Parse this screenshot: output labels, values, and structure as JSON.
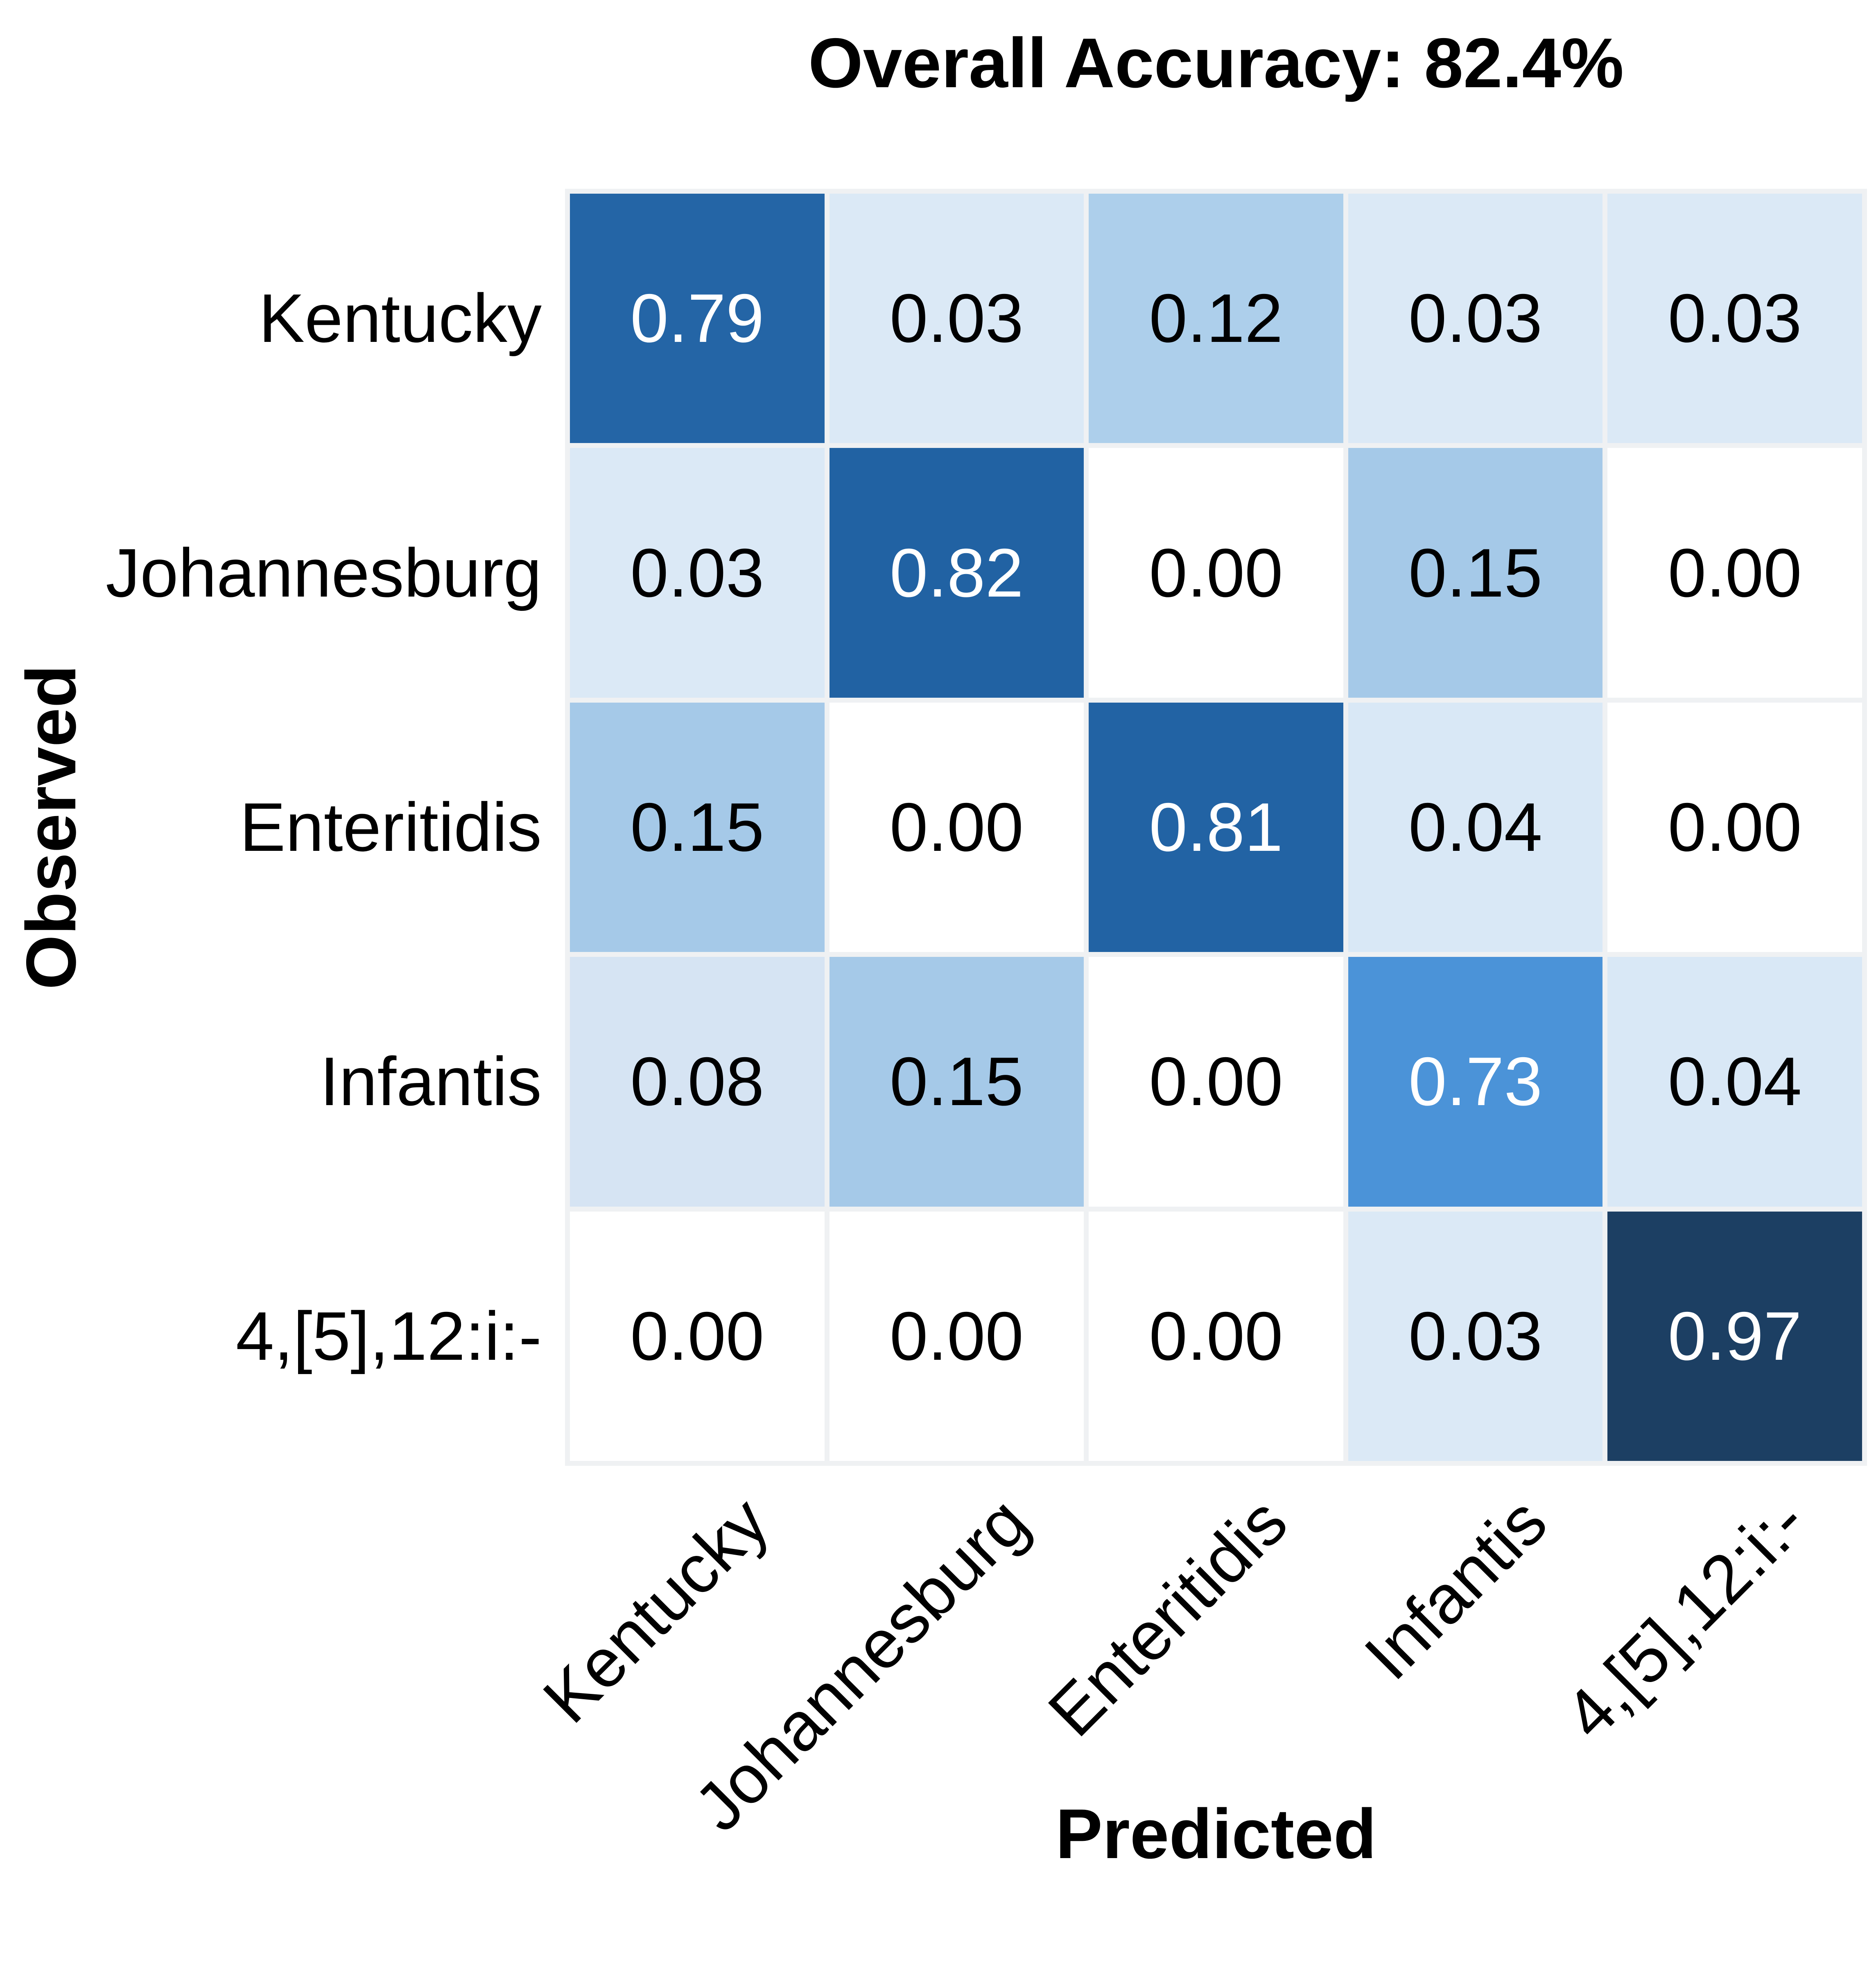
{
  "figure": {
    "title": "Overall Accuracy: 82.4%",
    "x_axis_title": "Predicted",
    "y_axis_title": "Observed"
  },
  "chart_data": {
    "type": "heatmap",
    "title": "Overall Accuracy: 82.4%",
    "xlabel": "Predicted",
    "ylabel": "Observed",
    "overall_accuracy_pct": 82.4,
    "x_categories": [
      "Kentucky",
      "Johannesburg",
      "Enteritidis",
      "Infantis",
      "4,[5],12:i:-"
    ],
    "y_categories": [
      "Kentucky",
      "Johannesburg",
      "Enteritidis",
      "Infantis",
      "4,[5],12:i:-"
    ],
    "matrix": [
      [
        0.79,
        0.03,
        0.12,
        0.03,
        0.03
      ],
      [
        0.03,
        0.82,
        0.0,
        0.15,
        0.0
      ],
      [
        0.15,
        0.0,
        0.81,
        0.04,
        0.0
      ],
      [
        0.08,
        0.15,
        0.0,
        0.73,
        0.04
      ],
      [
        0.0,
        0.0,
        0.0,
        0.03,
        0.97
      ]
    ],
    "value_format_decimals": 2,
    "value_range": [
      0,
      1
    ],
    "legend": "none",
    "grid": "off",
    "panel_background": "#eff1f3",
    "colorscale_low": "#ffffff",
    "colorscale_high": "#1c3f63",
    "cell_colors": [
      [
        "#2465a6",
        "#dbe9f6",
        "#adcfeb",
        "#dbe9f6",
        "#dbe9f6"
      ],
      [
        "#dbe9f6",
        "#2162a3",
        "#ffffff",
        "#a5c9e8",
        "#ffffff"
      ],
      [
        "#a5c9e8",
        "#ffffff",
        "#2263a4",
        "#d9e8f6",
        "#ffffff"
      ],
      [
        "#d6e4f3",
        "#a5c9e8",
        "#ffffff",
        "#4b93d8",
        "#d9e8f6"
      ],
      [
        "#ffffff",
        "#ffffff",
        "#ffffff",
        "#dbe9f6",
        "#1c3f63"
      ]
    ],
    "cell_text_colors": [
      [
        "#ffffff",
        "#000000",
        "#000000",
        "#000000",
        "#000000"
      ],
      [
        "#000000",
        "#ffffff",
        "#000000",
        "#000000",
        "#000000"
      ],
      [
        "#000000",
        "#000000",
        "#ffffff",
        "#000000",
        "#000000"
      ],
      [
        "#000000",
        "#000000",
        "#000000",
        "#ffffff",
        "#000000"
      ],
      [
        "#000000",
        "#000000",
        "#000000",
        "#000000",
        "#ffffff"
      ]
    ]
  }
}
